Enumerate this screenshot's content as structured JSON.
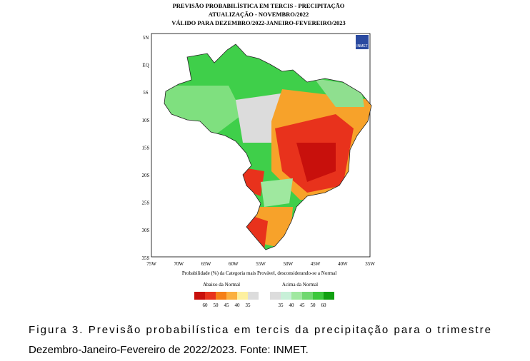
{
  "header": {
    "lines": [
      "PREVISÃO PROBABILÍSTICA EM TERCIS - PRECIPITAÇÃO",
      "ATUALIZAÇÃO - NOVEMBRO/2022",
      "VÁLIDO PARA DEZEMBRO/2022-JANEIRO-FEVEREIRO/2023"
    ]
  },
  "logo": "INMET",
  "map": {
    "lat_labels": [
      "5N",
      "EQ",
      "5S",
      "10S",
      "15S",
      "20S",
      "25S",
      "30S",
      "35S"
    ],
    "lon_labels": [
      "75W",
      "70W",
      "65W",
      "60W",
      "55W",
      "50W",
      "45W",
      "40W",
      "35W"
    ],
    "note": "Probabilidade (%) da Categoria mais Provável, desconsiderando-se a Normal"
  },
  "legend": {
    "below": {
      "title": "Abaixo da Normal",
      "labels": [
        "60",
        "50",
        "45",
        "40",
        "35"
      ]
    },
    "above": {
      "title": "Acima da Normal",
      "labels": [
        "35",
        "40",
        "45",
        "50",
        "60"
      ]
    }
  },
  "caption": {
    "lines": [
      "Figura 3. Previsão probabilística em tercis da precipitação para o trimestre",
      "Dezembro-Janeiro-Fevereiro de 2022/2023. Fonte: INMET."
    ]
  }
}
